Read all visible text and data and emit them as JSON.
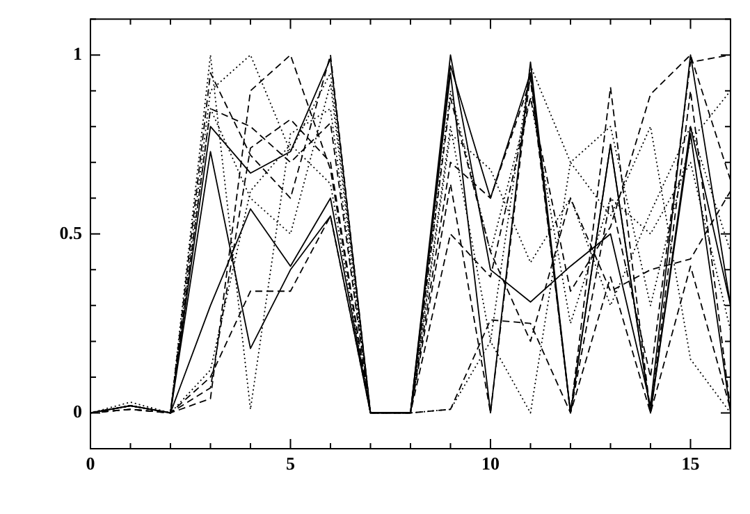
{
  "chart_data": {
    "type": "line",
    "x": [
      0,
      1,
      2,
      3,
      4,
      5,
      6,
      7,
      8,
      9,
      10,
      11,
      12,
      13,
      14,
      15,
      16
    ],
    "xlim": [
      0,
      16
    ],
    "ylim": [
      -0.1,
      1.1
    ],
    "xticks": [
      0,
      {
        "value": 1,
        "label": null
      },
      {
        "value": 2,
        "label": null
      },
      {
        "value": 3,
        "label": null
      },
      {
        "value": 4,
        "label": null
      },
      5,
      {
        "value": 6,
        "label": null
      },
      {
        "value": 7,
        "label": null
      },
      {
        "value": 8,
        "label": null
      },
      {
        "value": 9,
        "label": null
      },
      10,
      {
        "value": 11,
        "label": null
      },
      {
        "value": 12,
        "label": null
      },
      {
        "value": 13,
        "label": null
      },
      {
        "value": 14,
        "label": null
      },
      15,
      {
        "value": 16,
        "label": null
      }
    ],
    "yticks": [
      {
        "value": -0.1,
        "label": null
      },
      0,
      {
        "value": 0.1,
        "label": null
      },
      {
        "value": 0.2,
        "label": null
      },
      {
        "value": 0.3,
        "label": null
      },
      {
        "value": 0.4,
        "label": null
      },
      0.5,
      {
        "value": 0.6,
        "label": null
      },
      {
        "value": 0.7,
        "label": null
      },
      {
        "value": 0.8,
        "label": null
      },
      {
        "value": 0.9,
        "label": null
      },
      1,
      {
        "value": 1.1,
        "label": null
      }
    ],
    "grid": false,
    "legend": false,
    "marker": "none",
    "series": [
      {
        "color": "#000000",
        "line_style": "solid",
        "values": [
          0,
          0.02,
          0,
          0.3,
          0.57,
          0.41,
          0.6,
          0,
          0,
          1,
          0.4,
          0.31,
          0.41,
          0.5,
          0.02,
          1,
          0.3
        ]
      },
      {
        "color": "#000000",
        "line_style": "solid",
        "values": [
          0,
          0.02,
          0,
          0.73,
          0.18,
          0.4,
          0.55,
          0,
          0,
          0.95,
          0,
          0.98,
          0,
          0.75,
          0,
          0.78,
          0
        ]
      },
      {
        "color": "#000000",
        "line_style": "dashed",
        "values": [
          0,
          0.01,
          0,
          0.04,
          0.9,
          1,
          0.68,
          0,
          0,
          0.88,
          0.45,
          0.2,
          0.6,
          0.34,
          0.4,
          0.43,
          0.62
        ]
      },
      {
        "color": "#000000",
        "line_style": "dashed",
        "values": [
          0,
          0.02,
          0,
          0.95,
          0.72,
          0.6,
          1,
          0,
          0,
          0.64,
          0,
          0.95,
          0,
          0.91,
          0,
          0.9,
          0.01
        ]
      },
      {
        "color": "#000000",
        "line_style": "dotted",
        "values": [
          0,
          0.02,
          0,
          1,
          0.01,
          0.78,
          0.85,
          0,
          0,
          0.01,
          0.2,
          0,
          0.7,
          0.55,
          0.8,
          0.15,
          0
        ]
      },
      {
        "color": "#000000",
        "line_style": "dashed",
        "values": [
          0,
          0.01,
          0,
          0.1,
          0.34,
          0.34,
          0.55,
          0,
          0,
          0.01,
          0.26,
          0.25,
          0,
          0.38,
          0,
          0.41,
          0.01
        ]
      },
      {
        "color": "#000000",
        "line_style": "dotted",
        "values": [
          0,
          0.03,
          0,
          0.9,
          1,
          0.73,
          0.95,
          0,
          0,
          0.8,
          0.2,
          0.97,
          0.7,
          0.8,
          0.3,
          0.76,
          0.9
        ]
      },
      {
        "color": "#000000",
        "line_style": "dashed",
        "values": [
          0,
          0.02,
          0,
          0.85,
          0.8,
          0.7,
          0.81,
          0,
          0,
          0.7,
          0.6,
          0.93,
          0,
          0.6,
          0.1,
          0.98,
          1
        ]
      },
      {
        "color": "#000000",
        "line_style": "dotted",
        "values": [
          0,
          0.02,
          0,
          0.12,
          0.62,
          0.75,
          0.64,
          0,
          0,
          0.9,
          0.45,
          0.88,
          0.25,
          0.6,
          0.5,
          0.7,
          0.23
        ]
      },
      {
        "color": "#000000",
        "line_style": "dashed",
        "values": [
          0,
          0.01,
          0,
          0.07,
          0.74,
          0.82,
          0.7,
          0,
          0,
          0.5,
          0.38,
          0.88,
          0.34,
          0.52,
          0.89,
          1,
          0.65
        ]
      },
      {
        "color": "#000000",
        "line_style": "dotted",
        "values": [
          0,
          0.02,
          0,
          0.85,
          0.6,
          0.5,
          0.92,
          0,
          0,
          0.78,
          0.68,
          0.42,
          0.6,
          0.3,
          0.56,
          0.8,
          0.45
        ]
      },
      {
        "color": "#000000",
        "line_style": "solid",
        "values": [
          0,
          0.02,
          0,
          0.8,
          0.67,
          0.73,
          0.99,
          0,
          0,
          0.97,
          0.6,
          0.95,
          0,
          0.75,
          0,
          0.8,
          0.3
        ]
      }
    ]
  }
}
